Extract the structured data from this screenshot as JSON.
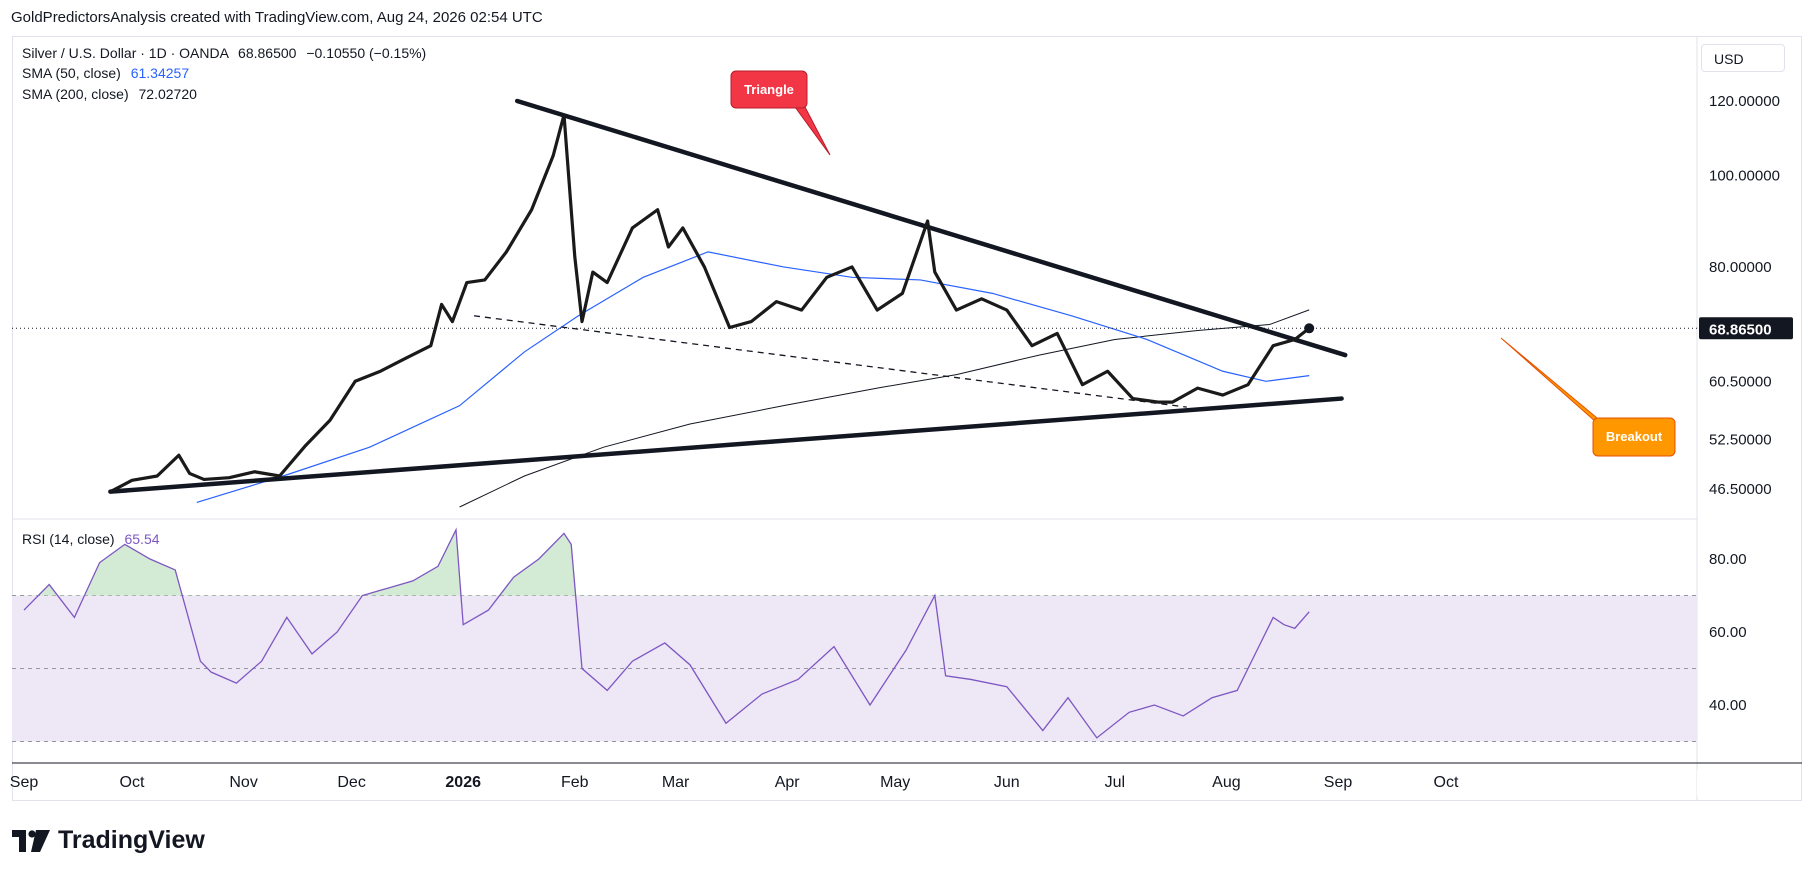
{
  "attribution": "GoldPredictorsAnalysis created with TradingView.com, Aug 24, 2026 02:54 UTC",
  "legend": {
    "symbol": "Silver / U.S. Dollar · 1D · OANDA",
    "price": "68.86500",
    "change": "−0.10550 (−0.15%)",
    "sma50_label": "SMA (50, close)",
    "sma50_value": "61.34257",
    "sma200_label": "SMA (200, close)",
    "sma200_value": "72.02720",
    "rsi_label": "RSI (14, close)",
    "rsi_value": "65.54"
  },
  "currency": "USD",
  "brand": "TradingView",
  "colors": {
    "price": "#1a1a1a",
    "sma50": "#2962ff",
    "sma200": "#131722",
    "rsi": "#7e57c2",
    "rsi_band": "#ede7f6",
    "triangle_callout": "#f23645",
    "breakout_callout": "#ff9800",
    "last_price_bg": "#131722"
  },
  "annotations": {
    "triangle": "Triangle",
    "breakout": "Breakout"
  },
  "chart_data": {
    "type": "line",
    "scale": "log",
    "price_axis_ticks": [
      "120.00000",
      "100.00000",
      "80.00000",
      "60.50000",
      "52.50000",
      "46.50000"
    ],
    "last_price_label": "68.86500",
    "rsi_axis_ticks": [
      "80.00",
      "60.00",
      "40.00"
    ],
    "rsi_levels": [
      70,
      50,
      30
    ],
    "x_ticks": [
      "Sep",
      "Oct",
      "Nov",
      "Dec",
      "2026",
      "Feb",
      "Mar",
      "Apr",
      "May",
      "Jun",
      "Jul",
      "Aug",
      "Sep",
      "Oct"
    ],
    "price_series": {
      "name": "Silver / U.S. Dollar",
      "dates": [
        "2025-09-25",
        "2025-10-01",
        "2025-10-08",
        "2025-10-14",
        "2025-10-17",
        "2025-10-21",
        "2025-10-28",
        "2025-11-04",
        "2025-11-11",
        "2025-11-18",
        "2025-11-25",
        "2025-12-02",
        "2025-12-09",
        "2025-12-16",
        "2025-12-23",
        "2025-12-26",
        "2025-12-29",
        "2026-01-02",
        "2026-01-07",
        "2026-01-13",
        "2026-01-20",
        "2026-01-26",
        "2026-01-29",
        "2026-02-01",
        "2026-02-03",
        "2026-02-06",
        "2026-02-10",
        "2026-02-17",
        "2026-02-24",
        "2026-02-27",
        "2026-03-03",
        "2026-03-09",
        "2026-03-16",
        "2026-03-22",
        "2026-03-29",
        "2026-04-05",
        "2026-04-12",
        "2026-04-19",
        "2026-04-26",
        "2026-05-03",
        "2026-05-10",
        "2026-05-12",
        "2026-05-18",
        "2026-05-25",
        "2026-06-01",
        "2026-06-08",
        "2026-06-15",
        "2026-06-22",
        "2026-06-29",
        "2026-07-06",
        "2026-07-13",
        "2026-07-17",
        "2026-07-24",
        "2026-07-31",
        "2026-08-07",
        "2026-08-14",
        "2026-08-20",
        "2026-08-24"
      ],
      "values": [
        46.2,
        47.5,
        48.0,
        50.5,
        48.3,
        47.6,
        47.8,
        48.5,
        48.0,
        51.6,
        55.0,
        60.5,
        62.0,
        64.0,
        66.0,
        73.0,
        70.0,
        77.0,
        77.5,
        83.0,
        92.0,
        105.0,
        116.0,
        82.0,
        70.0,
        79.0,
        77.0,
        88.0,
        92.0,
        84.0,
        88.0,
        80.0,
        69.0,
        70.0,
        73.5,
        72.0,
        78.0,
        80.0,
        72.0,
        75.0,
        89.5,
        79.0,
        72.0,
        74.0,
        72.0,
        66.0,
        68.0,
        60.0,
        62.0,
        58.0,
        57.5,
        57.5,
        59.5,
        58.5,
        60.0,
        66.0,
        67.0,
        68.865
      ]
    },
    "series": [
      {
        "name": "SMA (50, close)",
        "dates": [
          "2025-10-19",
          "2025-11-12",
          "2025-12-06",
          "2025-12-31",
          "2026-01-18",
          "2026-02-02",
          "2026-02-20",
          "2026-03-10",
          "2026-03-31",
          "2026-04-19",
          "2026-05-08",
          "2026-05-28",
          "2026-06-19",
          "2026-07-10",
          "2026-07-31",
          "2026-08-12",
          "2026-08-24"
        ],
        "values": [
          45.0,
          48.0,
          51.5,
          57.0,
          65.0,
          71.0,
          78.0,
          83.0,
          80.0,
          78.0,
          77.5,
          75.0,
          71.0,
          67.0,
          62.0,
          60.5,
          61.34
        ]
      },
      {
        "name": "SMA (200, close)",
        "dates": [
          "2025-12-31",
          "2026-01-18",
          "2026-02-09",
          "2026-03-05",
          "2026-03-31",
          "2026-04-26",
          "2026-05-18",
          "2026-06-10",
          "2026-07-01",
          "2026-07-24",
          "2026-08-13",
          "2026-08-24"
        ],
        "values": [
          44.5,
          48.0,
          51.5,
          54.5,
          57.0,
          59.5,
          61.5,
          64.5,
          67.0,
          68.5,
          69.5,
          72.03
        ]
      },
      {
        "name": "RSI (14, close)",
        "dates": [
          "2025-09-01",
          "2025-09-08",
          "2025-09-15",
          "2025-09-22",
          "2025-09-29",
          "2025-10-06",
          "2025-10-13",
          "2025-10-20",
          "2025-10-23",
          "2025-10-30",
          "2025-11-06",
          "2025-11-13",
          "2025-11-20",
          "2025-11-27",
          "2025-12-04",
          "2025-12-11",
          "2025-12-18",
          "2025-12-25",
          "2025-12-30",
          "2026-01-01",
          "2026-01-08",
          "2026-01-15",
          "2026-01-22",
          "2026-01-29",
          "2026-01-31",
          "2026-02-03",
          "2026-02-10",
          "2026-02-17",
          "2026-02-26",
          "2026-03-05",
          "2026-03-15",
          "2026-03-25",
          "2026-04-04",
          "2026-04-14",
          "2026-04-24",
          "2026-05-04",
          "2026-05-12",
          "2026-05-15",
          "2026-05-22",
          "2026-06-01",
          "2026-06-11",
          "2026-06-18",
          "2026-06-26",
          "2026-07-05",
          "2026-07-12",
          "2026-07-20",
          "2026-07-28",
          "2026-08-04",
          "2026-08-10",
          "2026-08-14",
          "2026-08-17",
          "2026-08-20",
          "2026-08-24"
        ],
        "values": [
          66,
          73,
          64,
          79,
          84,
          80,
          77,
          52,
          49,
          46,
          52,
          64,
          54,
          60,
          70,
          72,
          74,
          78,
          88,
          62,
          66,
          75,
          80,
          87,
          84,
          50,
          44,
          52,
          57,
          51,
          35,
          43,
          47,
          56,
          40,
          55,
          70,
          48,
          47,
          45,
          33,
          42,
          31,
          38,
          40,
          37,
          42,
          44,
          56,
          64,
          62,
          61,
          65.54
        ]
      }
    ],
    "trendlines": [
      {
        "name": "upper-resistance",
        "dates": [
          "2026-01-16",
          "2026-09-03"
        ],
        "values": [
          120.0,
          64.5
        ]
      },
      {
        "name": "lower-support",
        "dates": [
          "2025-09-25",
          "2026-09-02"
        ],
        "values": [
          46.2,
          58.0
        ]
      },
      {
        "name": "inner-dashed-support",
        "dates": [
          "2026-01-04",
          "2026-07-21"
        ],
        "values": [
          71.0,
          56.8
        ]
      }
    ]
  }
}
